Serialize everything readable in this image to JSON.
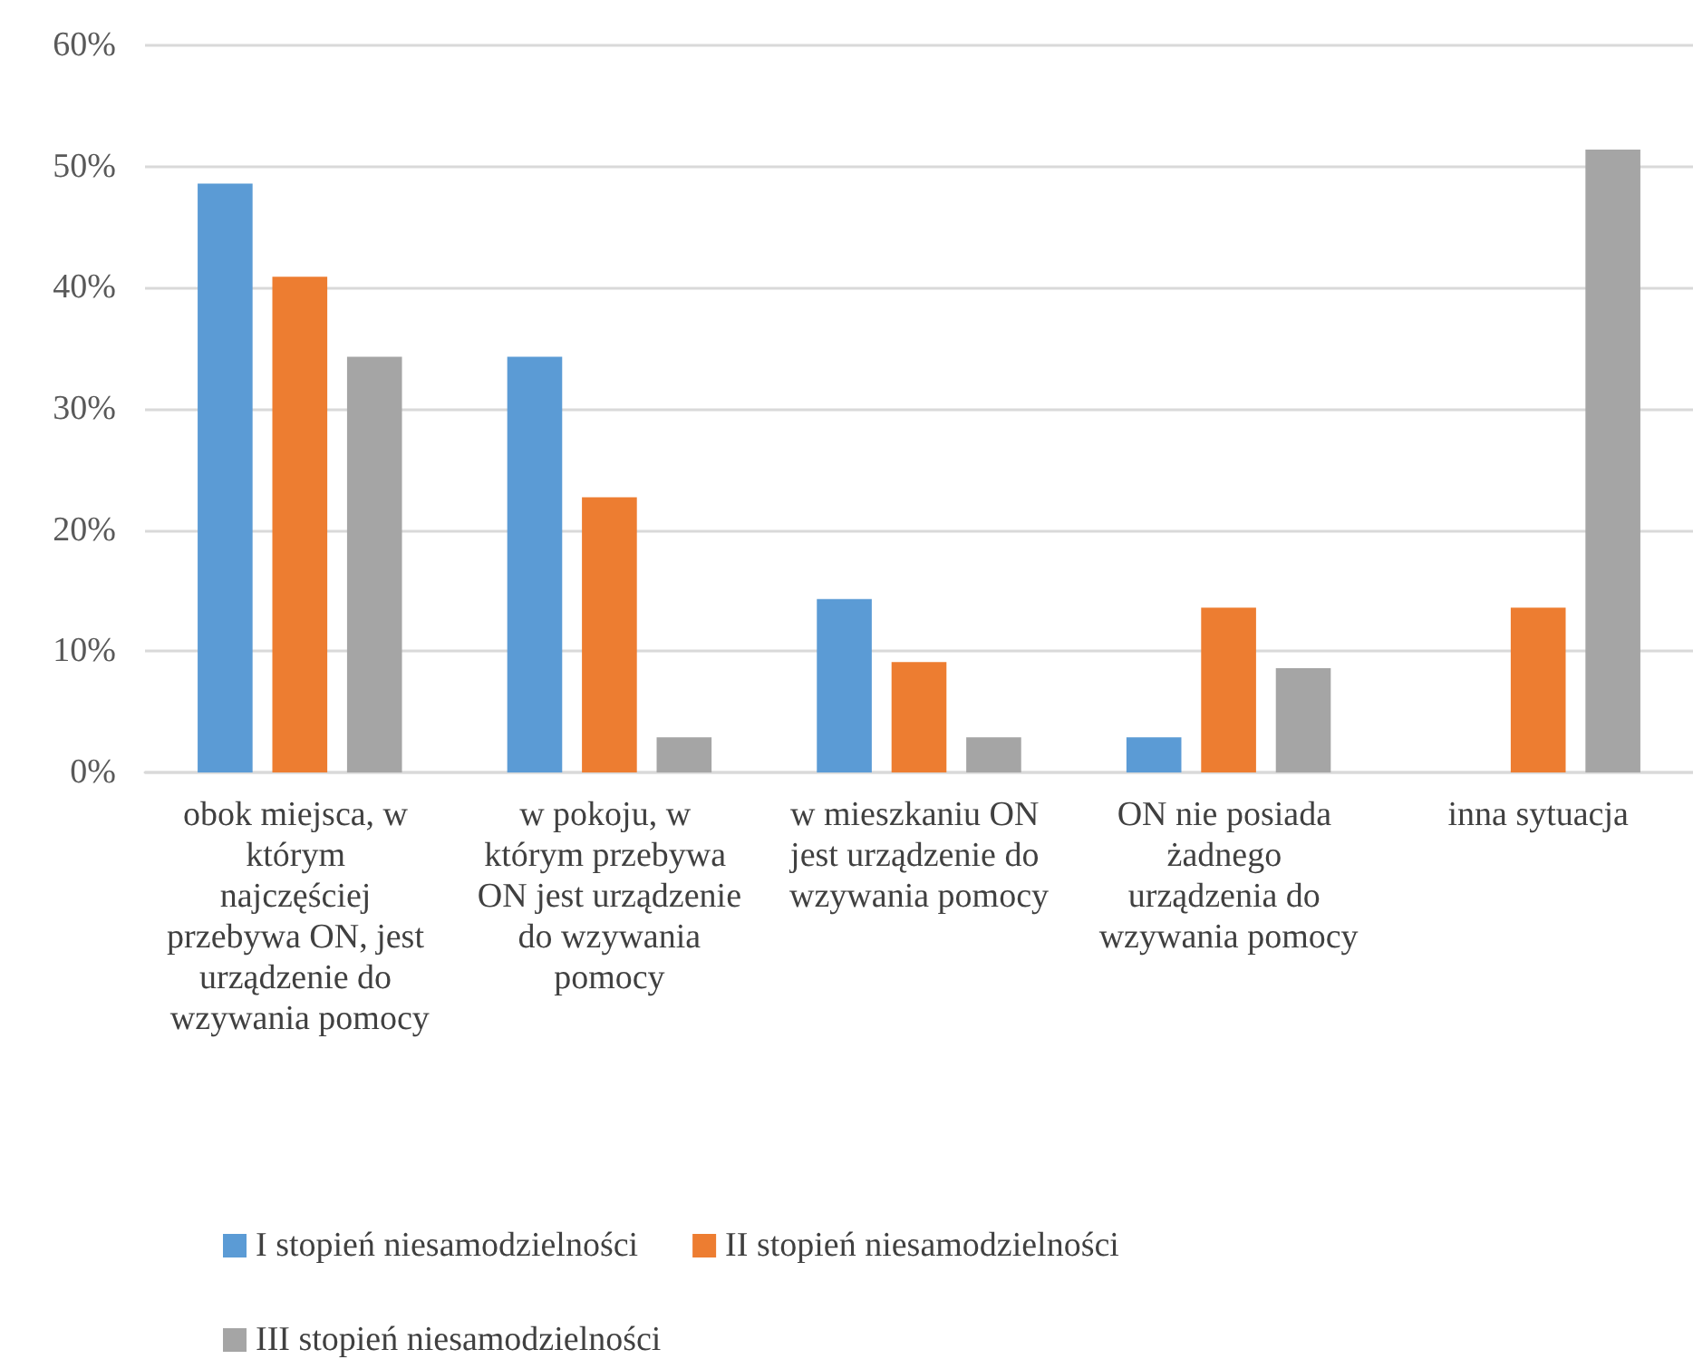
{
  "chart_data": {
    "type": "bar",
    "categories": [
      "obok miejsca, w którym najczęściej przebywa ON, jest urządzenie do wzywania pomocy",
      "w pokoju, w którym przebywa ON jest urządzenie do wzywania pomocy",
      "w mieszkaniu ON jest urządzenie do wzywania pomocy",
      "ON nie posiada żadnego urządzenia do wzywania pomocy",
      "inna sytuacja"
    ],
    "series": [
      {
        "name": "I stopień niesamodzielności",
        "color": "#5b9bd5",
        "values": [
          48.6,
          34.3,
          14.3,
          2.9,
          0
        ]
      },
      {
        "name": "II stopień niesamodzielności",
        "color": "#ed7d31",
        "values": [
          40.9,
          22.7,
          9.1,
          13.6,
          13.6
        ]
      },
      {
        "name": "III stopień niesamodzielności",
        "color": "#a5a5a5",
        "values": [
          34.3,
          2.9,
          2.9,
          8.6,
          51.4
        ]
      }
    ],
    "ylim": [
      0,
      60
    ],
    "yticks": [
      {
        "value": 0,
        "label": "0%"
      },
      {
        "value": 10,
        "label": "10%"
      },
      {
        "value": 20,
        "label": "20%"
      },
      {
        "value": 30,
        "label": "30%"
      },
      {
        "value": 40,
        "label": "40%"
      },
      {
        "value": 50,
        "label": "50%"
      },
      {
        "value": 60,
        "label": "60%"
      }
    ],
    "grid": "y",
    "legend": "bottom"
  }
}
